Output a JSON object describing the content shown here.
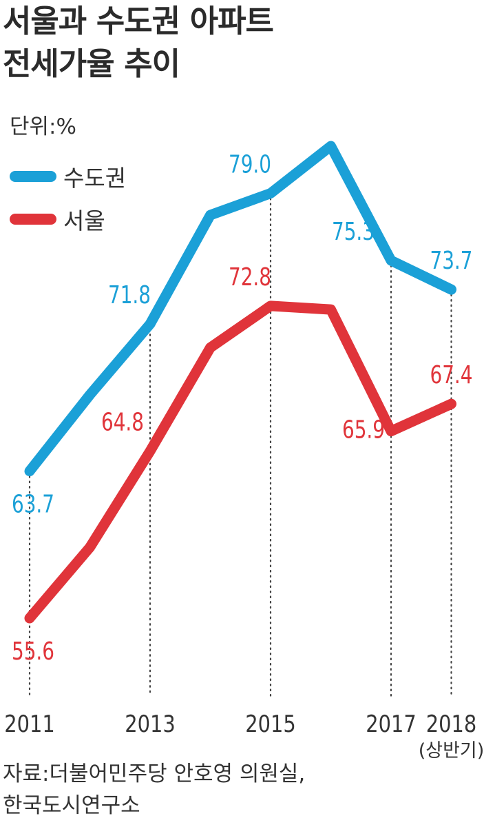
{
  "title_line1": "서울과 수도권 아파트",
  "title_line2": "전세가율 추이",
  "unit": "단위:%",
  "source_line1": "자료:더불어민주당 안호영 의원실,",
  "source_line2": "한국도시연구소",
  "chart_data": {
    "type": "line",
    "title": "서울과 수도권 아파트 전세가율 추이",
    "ylabel": "",
    "unit": "단위:%",
    "x": [
      "2011",
      "2012",
      "2013",
      "2014",
      "2015",
      "2016",
      "2017",
      "2018 (상반기)"
    ],
    "x_tick_labels": [
      "2011",
      "",
      "2013",
      "",
      "2015",
      "",
      "2017",
      "2018"
    ],
    "x_tick_sublabel": "(상반기)",
    "ylim": [
      52,
      84
    ],
    "grid": "dotted vertical guides at labeled years",
    "legend": "top-left",
    "series": [
      {
        "name": "수도권",
        "color": "#1ba0d7",
        "values": [
          63.7,
          67.9,
          71.8,
          77.8,
          79.0,
          81.6,
          75.3,
          73.7
        ],
        "labels": [
          "63.7",
          "",
          "71.8",
          "",
          "79.0",
          "",
          "75.3",
          "73.7"
        ]
      },
      {
        "name": "서울",
        "color": "#e0343a",
        "values": [
          55.6,
          59.5,
          64.8,
          70.5,
          72.8,
          72.6,
          65.9,
          67.4
        ],
        "labels": [
          "55.6",
          "",
          "64.8",
          "",
          "72.8",
          "",
          "65.9",
          "67.4"
        ]
      }
    ]
  }
}
